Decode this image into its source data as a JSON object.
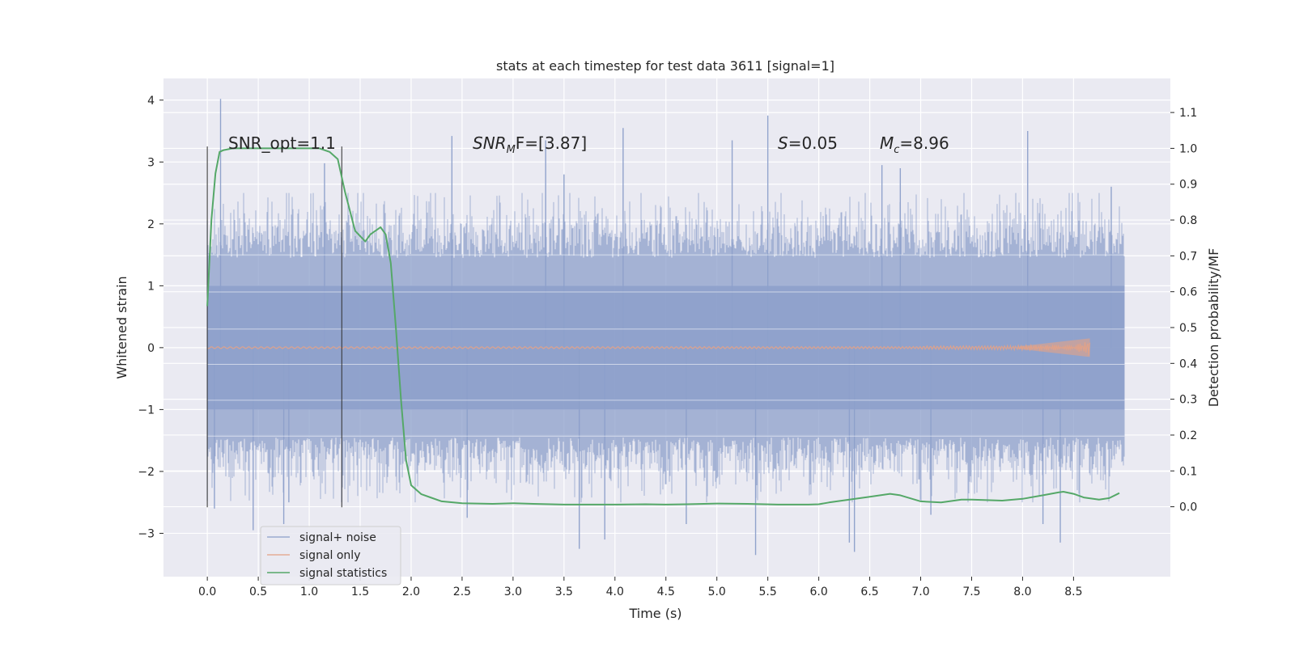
{
  "chart_data": {
    "type": "line",
    "title": "stats at each timestep for test data 3611 [signal=1]",
    "xlabel": "Time (s)",
    "ylabel": "Whitened strain",
    "y2label": "Detection probability/MF",
    "xlim": [
      -0.43,
      9.45
    ],
    "ylim": [
      -3.7,
      4.35
    ],
    "y2lim": [
      -0.195,
      1.195
    ],
    "xticks": [
      "0.0",
      "0.5",
      "1.0",
      "1.5",
      "2.0",
      "2.5",
      "3.0",
      "3.5",
      "4.0",
      "4.5",
      "5.0",
      "5.5",
      "6.0",
      "6.5",
      "7.0",
      "7.5",
      "8.0",
      "8.5"
    ],
    "yticks": [
      "4",
      "3",
      "2",
      "1",
      "0",
      "−1",
      "−2",
      "−3"
    ],
    "y2ticks": [
      "1.1",
      "1.0",
      "0.9",
      "0.8",
      "0.7",
      "0.6",
      "0.5",
      "0.4",
      "0.3",
      "0.2",
      "0.1",
      "0.0"
    ],
    "grid": true,
    "legend_position": "bottom-left",
    "annotations": {
      "snr_opt": "SNR_opt=1.1",
      "snr_mf_prefix": "SNR",
      "snr_mf_sub": "M",
      "snr_mf_suffix": "F=[3.87]",
      "s_var": "S",
      "s_value": "=0.05",
      "mc_var": "M",
      "mc_sub": "c",
      "mc_value": "=8.96"
    },
    "markers": {
      "vlines_x": [
        0.0,
        1.32
      ]
    },
    "series": [
      {
        "name": "signal+ noise",
        "color": "#8da0cb",
        "x_range": [
          0.0,
          9.0
        ],
        "band_1sigma": [
          -1.0,
          1.0
        ],
        "noise_envelope": [
          -2.5,
          2.5
        ],
        "spikes": [
          {
            "x": 0.13,
            "y": 4.02
          },
          {
            "x": 0.07,
            "y": -2.6
          },
          {
            "x": 0.45,
            "y": -2.95
          },
          {
            "x": 0.75,
            "y": -2.85
          },
          {
            "x": 0.8,
            "y": -2.5
          },
          {
            "x": 2.4,
            "y": 3.42
          },
          {
            "x": 2.55,
            "y": -2.75
          },
          {
            "x": 3.32,
            "y": 3.35
          },
          {
            "x": 3.65,
            "y": -3.25
          },
          {
            "x": 3.9,
            "y": -3.1
          },
          {
            "x": 4.08,
            "y": 3.55
          },
          {
            "x": 4.7,
            "y": -2.85
          },
          {
            "x": 5.15,
            "y": 3.35
          },
          {
            "x": 5.38,
            "y": -3.35
          },
          {
            "x": 5.5,
            "y": 3.75
          },
          {
            "x": 6.3,
            "y": -3.15
          },
          {
            "x": 6.35,
            "y": -3.3
          },
          {
            "x": 6.62,
            "y": 2.95
          },
          {
            "x": 7.1,
            "y": -2.7
          },
          {
            "x": 8.05,
            "y": 3.5
          },
          {
            "x": 8.2,
            "y": -2.85
          },
          {
            "x": 8.37,
            "y": -3.15
          },
          {
            "x": 8.87,
            "y": 2.6
          },
          {
            "x": 3.5,
            "y": 2.8
          },
          {
            "x": 6.8,
            "y": 2.9
          },
          {
            "x": 1.15,
            "y": 2.98
          }
        ]
      },
      {
        "name": "signal only",
        "color": "#e5a286",
        "x_range": [
          0.0,
          8.66
        ],
        "chirp_peak_x": 8.66,
        "chirp_peak_amplitude": 0.15
      },
      {
        "name": "signal statistics",
        "color": "#55a868",
        "axis": "right",
        "x": [
          0.0,
          0.04,
          0.08,
          0.12,
          0.16,
          0.25,
          0.5,
          0.8,
          1.0,
          1.1,
          1.2,
          1.28,
          1.35,
          1.45,
          1.55,
          1.6,
          1.7,
          1.75,
          1.8,
          1.85,
          1.9,
          1.95,
          2.0,
          2.1,
          2.2,
          2.3,
          2.5,
          2.8,
          3.0,
          3.2,
          3.5,
          3.7,
          4.0,
          4.3,
          4.5,
          4.7,
          5.0,
          5.3,
          5.6,
          5.9,
          6.0,
          6.1,
          6.3,
          6.5,
          6.7,
          6.8,
          7.0,
          7.2,
          7.4,
          7.5,
          7.8,
          8.0,
          8.2,
          8.35,
          8.4,
          8.5,
          8.6,
          8.75,
          8.85,
          8.95
        ],
        "y": [
          0.56,
          0.8,
          0.93,
          0.99,
          0.995,
          1.0,
          1.0,
          1.0,
          1.0,
          1.0,
          0.99,
          0.97,
          0.88,
          0.77,
          0.74,
          0.76,
          0.78,
          0.76,
          0.68,
          0.5,
          0.3,
          0.13,
          0.06,
          0.035,
          0.025,
          0.015,
          0.01,
          0.008,
          0.01,
          0.008,
          0.006,
          0.006,
          0.006,
          0.007,
          0.006,
          0.007,
          0.009,
          0.008,
          0.006,
          0.006,
          0.007,
          0.012,
          0.02,
          0.028,
          0.036,
          0.032,
          0.015,
          0.012,
          0.02,
          0.02,
          0.017,
          0.022,
          0.032,
          0.04,
          0.042,
          0.036,
          0.026,
          0.02,
          0.024,
          0.038
        ]
      }
    ]
  }
}
